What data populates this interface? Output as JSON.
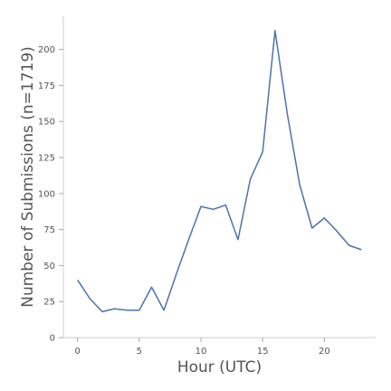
{
  "chart_data": {
    "type": "line",
    "xlabel": "Hour (UTC)",
    "ylabel": "Number of Submissions (n=1719)",
    "x": [
      0,
      1,
      2,
      3,
      4,
      5,
      6,
      7,
      8,
      9,
      10,
      11,
      12,
      13,
      14,
      15,
      16,
      17,
      18,
      19,
      20,
      21,
      22,
      23
    ],
    "series": [
      {
        "values": [
          40,
          27,
          18,
          20,
          19,
          19,
          35,
          19,
          44,
          68,
          91,
          89,
          92,
          68,
          110,
          129,
          213,
          155,
          106,
          76,
          83,
          74,
          64,
          61
        ]
      }
    ],
    "xticks": [
      0,
      5,
      10,
      15,
      20
    ],
    "yticks": [
      0,
      25,
      50,
      75,
      100,
      125,
      150,
      175,
      200
    ],
    "xlim": [
      -1.15,
      24.15
    ],
    "ylim": [
      0,
      223
    ],
    "grid": false,
    "legend": false,
    "colors": {
      "line": "#4c72b0"
    }
  }
}
